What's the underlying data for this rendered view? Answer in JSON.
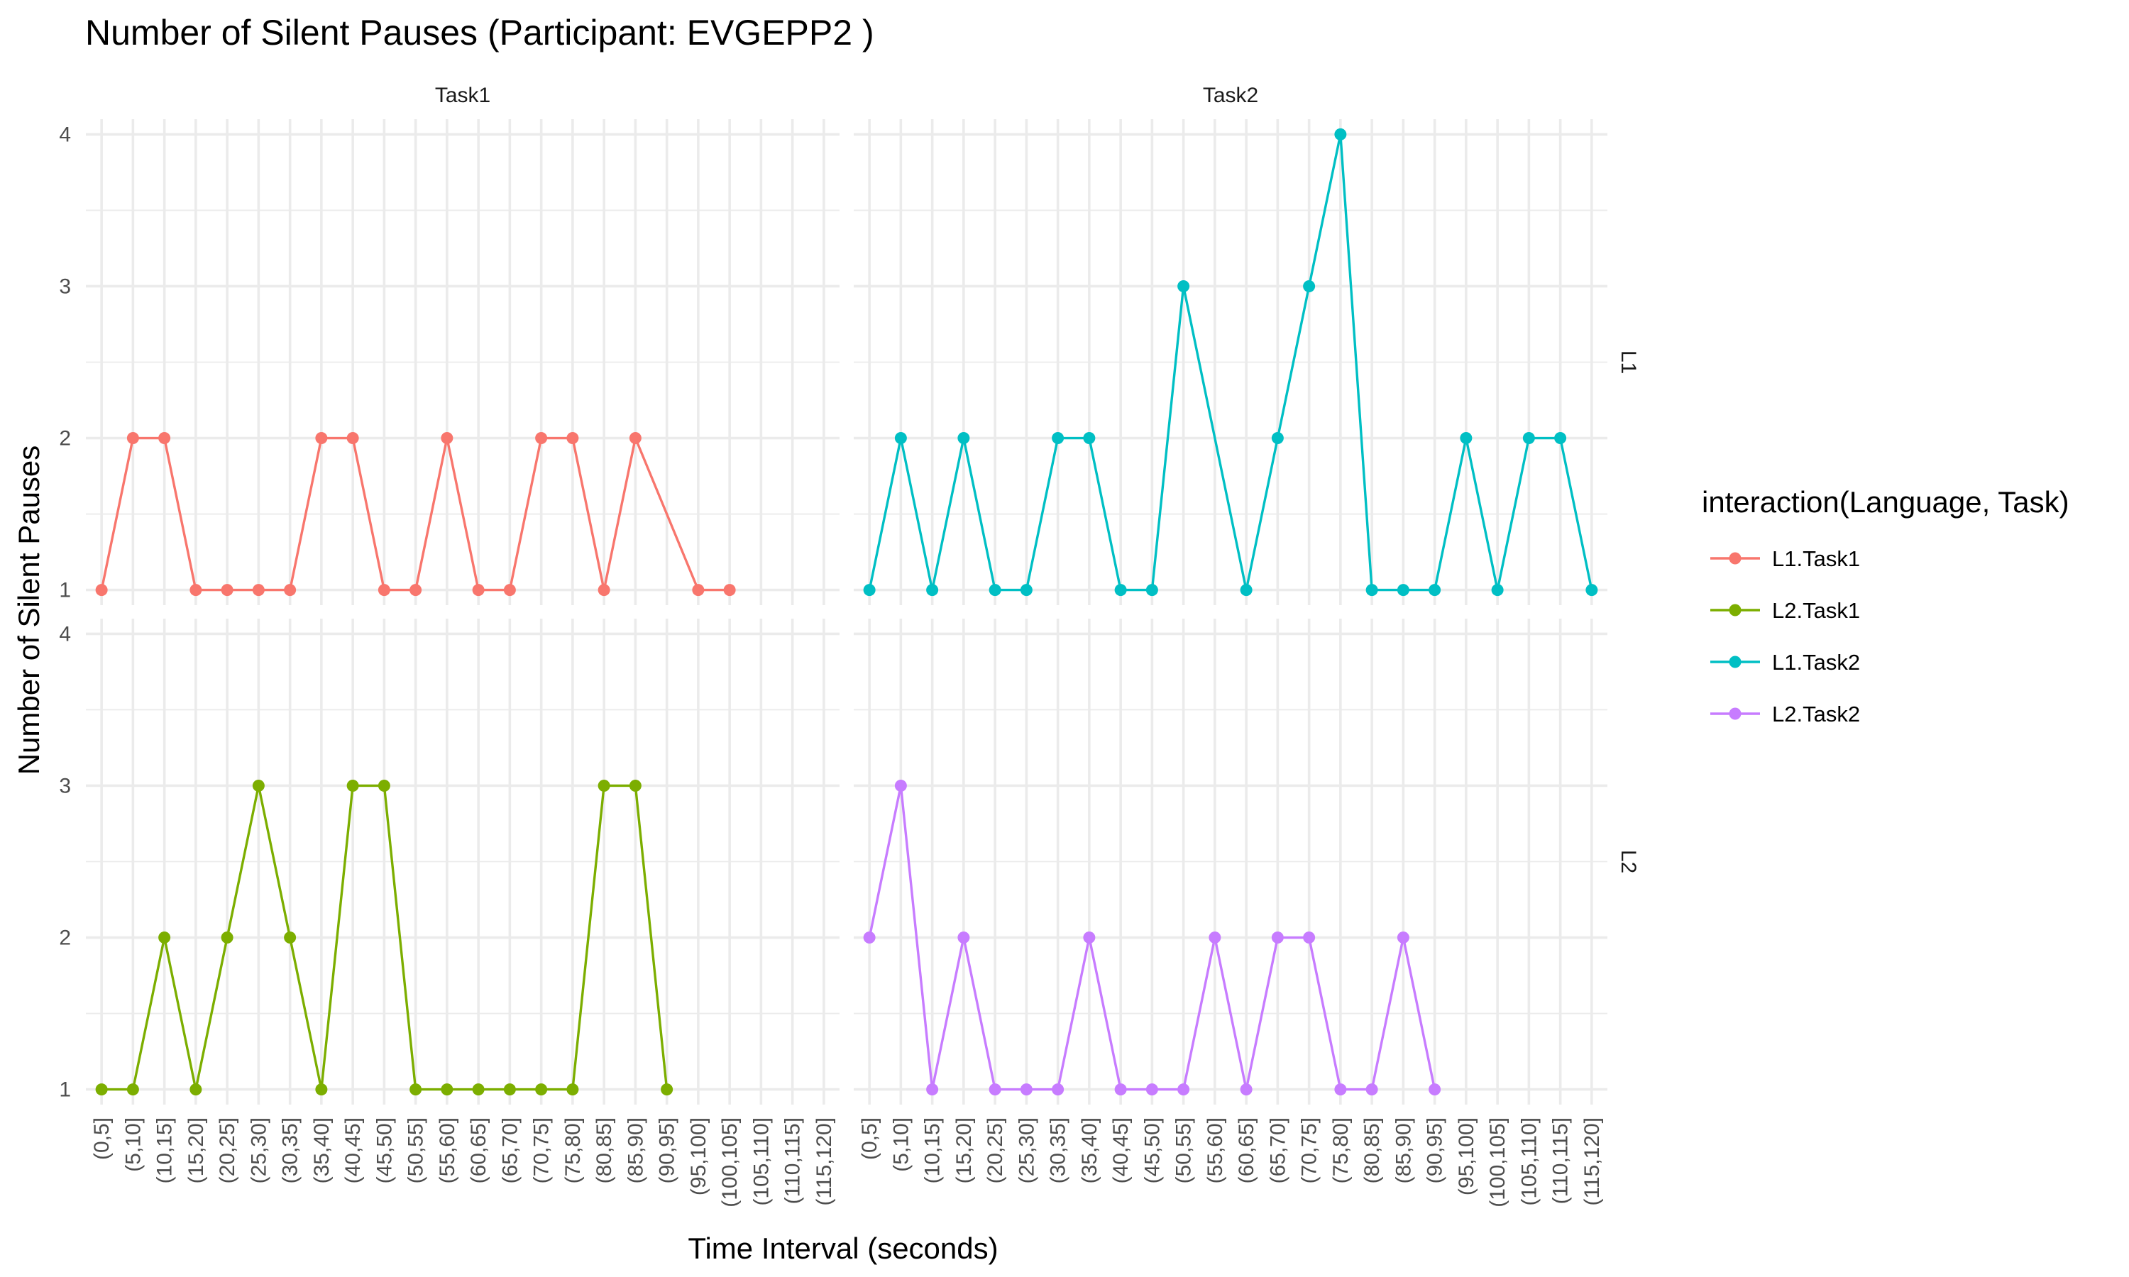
{
  "chart_data": {
    "type": "line",
    "title": "Number of Silent Pauses (Participant: EVGEPP2 )",
    "xlabel": "Time Interval (seconds)",
    "ylabel": "Number of Silent Pauses",
    "facet_cols": [
      "Task1",
      "Task2"
    ],
    "facet_rows": [
      "L1",
      "L2"
    ],
    "categories": [
      "(0,5]",
      "(5,10]",
      "(10,15]",
      "(15,20]",
      "(20,25]",
      "(25,30]",
      "(30,35]",
      "(35,40]",
      "(40,45]",
      "(45,50]",
      "(50,55]",
      "(55,60]",
      "(60,65]",
      "(65,70]",
      "(70,75]",
      "(75,80]",
      "(80,85]",
      "(85,90]",
      "(90,95]",
      "(95,100]",
      "(100,105]",
      "(105,110]",
      "(110,115]",
      "(115,120]"
    ],
    "y_ticks": [
      1,
      2,
      3,
      4
    ],
    "ylim": [
      0.9,
      4.1
    ],
    "grid": true,
    "legend": {
      "title": "interaction(Language, Task)",
      "position": "right",
      "entries": [
        "L1.Task1",
        "L2.Task1",
        "L1.Task2",
        "L2.Task2"
      ]
    },
    "series": [
      {
        "name": "L1.Task1",
        "color": "#F8766D",
        "row": "L1",
        "col": "Task1",
        "points": [
          {
            "x": "(0,5]",
            "y": 1
          },
          {
            "x": "(5,10]",
            "y": 2
          },
          {
            "x": "(10,15]",
            "y": 2
          },
          {
            "x": "(15,20]",
            "y": 1
          },
          {
            "x": "(20,25]",
            "y": 1
          },
          {
            "x": "(25,30]",
            "y": 1
          },
          {
            "x": "(30,35]",
            "y": 1
          },
          {
            "x": "(35,40]",
            "y": 2
          },
          {
            "x": "(40,45]",
            "y": 2
          },
          {
            "x": "(45,50]",
            "y": 1
          },
          {
            "x": "(50,55]",
            "y": 1
          },
          {
            "x": "(55,60]",
            "y": 2
          },
          {
            "x": "(60,65]",
            "y": 1
          },
          {
            "x": "(65,70]",
            "y": 1
          },
          {
            "x": "(70,75]",
            "y": 2
          },
          {
            "x": "(75,80]",
            "y": 2
          },
          {
            "x": "(80,85]",
            "y": 1
          },
          {
            "x": "(85,90]",
            "y": 2
          },
          {
            "x": "(95,100]",
            "y": 1
          },
          {
            "x": "(100,105]",
            "y": 1
          }
        ]
      },
      {
        "name": "L2.Task1",
        "color": "#7CAE00",
        "row": "L2",
        "col": "Task1",
        "points": [
          {
            "x": "(0,5]",
            "y": 1
          },
          {
            "x": "(5,10]",
            "y": 1
          },
          {
            "x": "(10,15]",
            "y": 2
          },
          {
            "x": "(15,20]",
            "y": 1
          },
          {
            "x": "(20,25]",
            "y": 2
          },
          {
            "x": "(25,30]",
            "y": 3
          },
          {
            "x": "(30,35]",
            "y": 2
          },
          {
            "x": "(35,40]",
            "y": 1
          },
          {
            "x": "(40,45]",
            "y": 3
          },
          {
            "x": "(45,50]",
            "y": 3
          },
          {
            "x": "(50,55]",
            "y": 1
          },
          {
            "x": "(55,60]",
            "y": 1
          },
          {
            "x": "(60,65]",
            "y": 1
          },
          {
            "x": "(65,70]",
            "y": 1
          },
          {
            "x": "(70,75]",
            "y": 1
          },
          {
            "x": "(75,80]",
            "y": 1
          },
          {
            "x": "(80,85]",
            "y": 3
          },
          {
            "x": "(85,90]",
            "y": 3
          },
          {
            "x": "(90,95]",
            "y": 1
          }
        ]
      },
      {
        "name": "L1.Task2",
        "color": "#00BFC4",
        "row": "L1",
        "col": "Task2",
        "points": [
          {
            "x": "(0,5]",
            "y": 1
          },
          {
            "x": "(5,10]",
            "y": 2
          },
          {
            "x": "(10,15]",
            "y": 1
          },
          {
            "x": "(15,20]",
            "y": 2
          },
          {
            "x": "(20,25]",
            "y": 1
          },
          {
            "x": "(25,30]",
            "y": 1
          },
          {
            "x": "(30,35]",
            "y": 2
          },
          {
            "x": "(35,40]",
            "y": 2
          },
          {
            "x": "(40,45]",
            "y": 1
          },
          {
            "x": "(45,50]",
            "y": 1
          },
          {
            "x": "(50,55]",
            "y": 3
          },
          {
            "x": "(60,65]",
            "y": 1
          },
          {
            "x": "(65,70]",
            "y": 2
          },
          {
            "x": "(70,75]",
            "y": 3
          },
          {
            "x": "(75,80]",
            "y": 4
          },
          {
            "x": "(80,85]",
            "y": 1
          },
          {
            "x": "(85,90]",
            "y": 1
          },
          {
            "x": "(90,95]",
            "y": 1
          },
          {
            "x": "(95,100]",
            "y": 2
          },
          {
            "x": "(100,105]",
            "y": 1
          },
          {
            "x": "(105,110]",
            "y": 2
          },
          {
            "x": "(110,115]",
            "y": 2
          },
          {
            "x": "(115,120]",
            "y": 1
          }
        ]
      },
      {
        "name": "L2.Task2",
        "color": "#C77CFF",
        "row": "L2",
        "col": "Task2",
        "points": [
          {
            "x": "(0,5]",
            "y": 2
          },
          {
            "x": "(5,10]",
            "y": 3
          },
          {
            "x": "(10,15]",
            "y": 1
          },
          {
            "x": "(15,20]",
            "y": 2
          },
          {
            "x": "(20,25]",
            "y": 1
          },
          {
            "x": "(25,30]",
            "y": 1
          },
          {
            "x": "(30,35]",
            "y": 1
          },
          {
            "x": "(35,40]",
            "y": 2
          },
          {
            "x": "(40,45]",
            "y": 1
          },
          {
            "x": "(45,50]",
            "y": 1
          },
          {
            "x": "(50,55]",
            "y": 1
          },
          {
            "x": "(55,60]",
            "y": 2
          },
          {
            "x": "(60,65]",
            "y": 1
          },
          {
            "x": "(65,70]",
            "y": 2
          },
          {
            "x": "(70,75]",
            "y": 2
          },
          {
            "x": "(75,80]",
            "y": 1
          },
          {
            "x": "(80,85]",
            "y": 1
          },
          {
            "x": "(85,90]",
            "y": 2
          },
          {
            "x": "(90,95]",
            "y": 1
          }
        ]
      }
    ]
  }
}
